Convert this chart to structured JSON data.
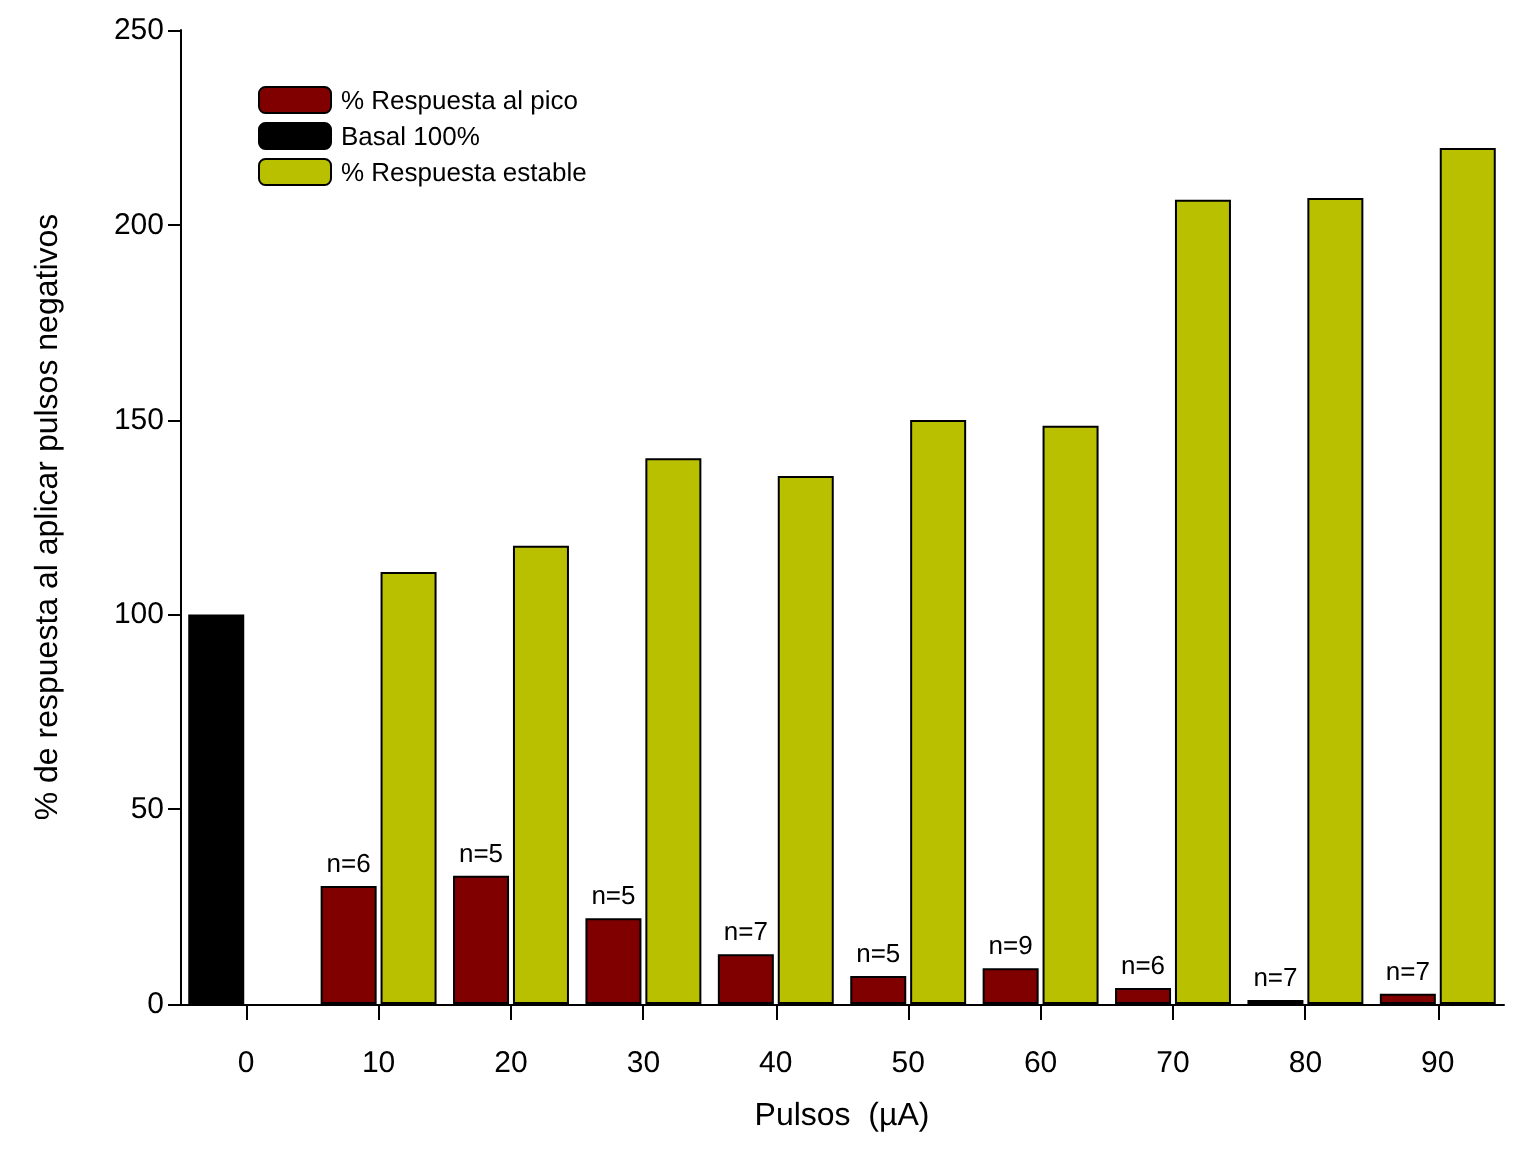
{
  "chart_data": {
    "type": "bar",
    "xlabel": "Pulsos  (µA)",
    "ylabel": "% de respuesta al aplicar pulsos negativos",
    "categories": [
      "0",
      "10",
      "20",
      "30",
      "40",
      "50",
      "60",
      "70",
      "80",
      "90"
    ],
    "series": [
      {
        "name": "% Respuesta al pico",
        "color": "#800000",
        "values": [
          null,
          30.3,
          32.9,
          22,
          12.8,
          7.2,
          9.2,
          4.1,
          1,
          2.6
        ]
      },
      {
        "name": "Basal 100%",
        "color": "#000000",
        "values": [
          100,
          null,
          null,
          null,
          null,
          null,
          null,
          null,
          null,
          null
        ]
      },
      {
        "name": "% Respuesta estable",
        "color": "#b8c000",
        "values": [
          null,
          110.9,
          117.6,
          140.1,
          135.5,
          149.9,
          148.4,
          206.4,
          206.9,
          219.7
        ]
      }
    ],
    "ylim": [
      0,
      250
    ],
    "yticks": [
      0,
      50,
      100,
      150,
      200,
      250
    ],
    "grid": false,
    "legend": "top left",
    "annotations": [
      {
        "text": "n=6",
        "x": "10",
        "y": 30.3
      },
      {
        "text": "n=5",
        "x": "20",
        "y": 32.9
      },
      {
        "text": "n=5",
        "x": "30",
        "y": 22
      },
      {
        "text": "n=7",
        "x": "40",
        "y": 12.8
      },
      {
        "text": "n=5",
        "x": "50",
        "y": 7.2
      },
      {
        "text": "n=9",
        "x": "60",
        "y": 9.2
      },
      {
        "text": "n=6",
        "x": "70",
        "y": 4.1
      },
      {
        "text": "n=7",
        "x": "80",
        "y": 1
      },
      {
        "text": "n=7",
        "x": "90",
        "y": 2.6
      }
    ]
  }
}
